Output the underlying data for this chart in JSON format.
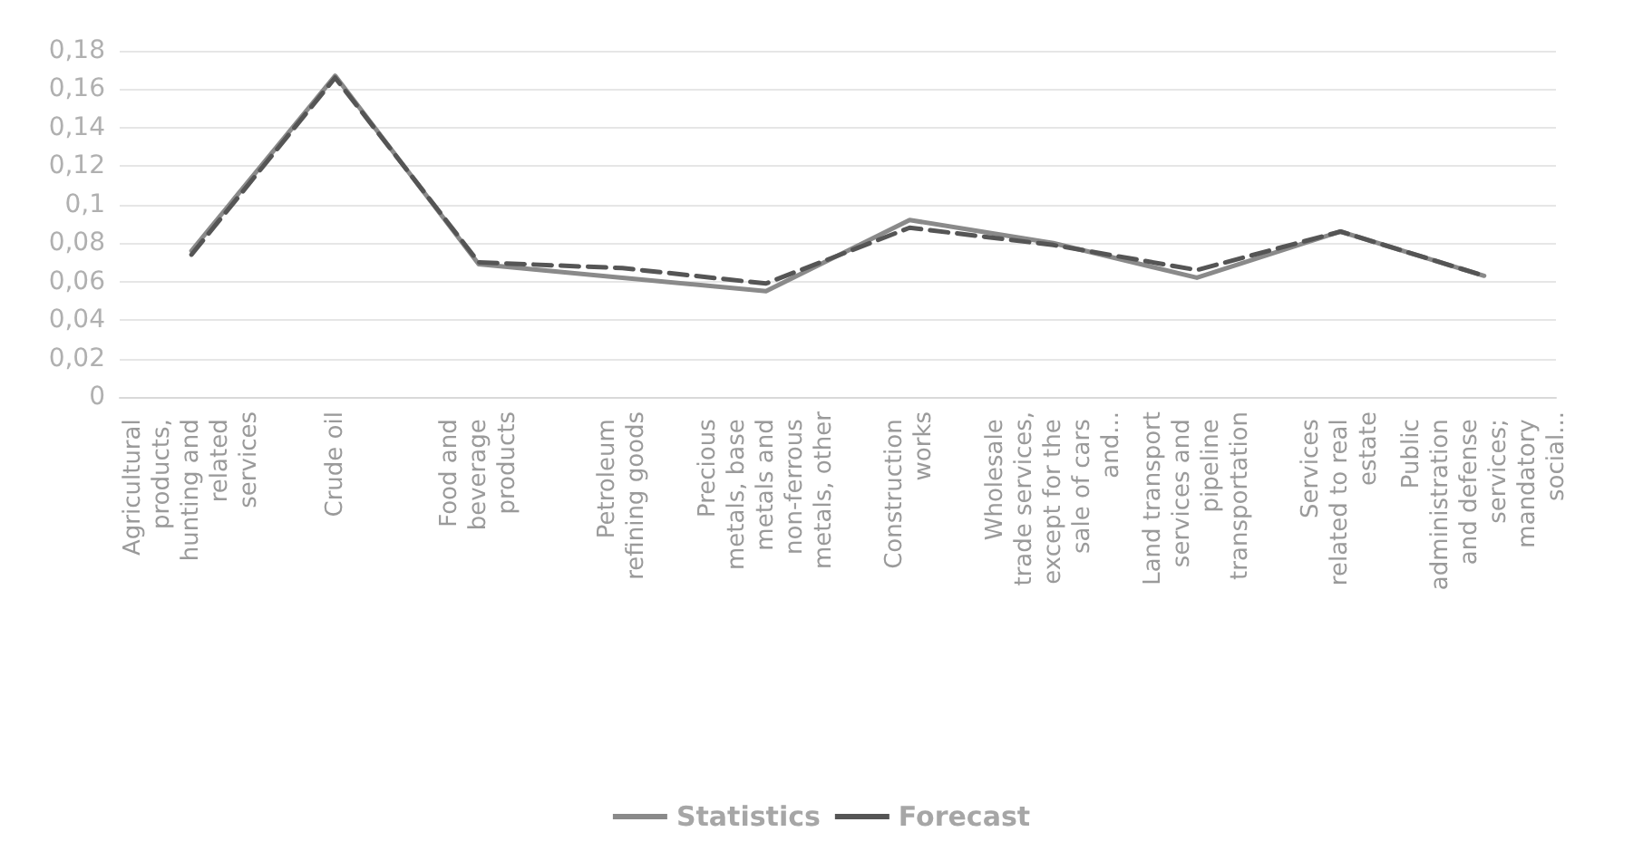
{
  "chart_data": {
    "type": "line",
    "categories": [
      "Agricultural products, hunting and related services",
      "Crude oil",
      "Food and beverage products",
      "Petroleum refining goods",
      "Precious metals, base metals and non-ferrous metals, other",
      "Construction works",
      "Wholesale trade services, except for the sale of cars and...",
      "Land transport services and pipeline transportation",
      "Services related to real estate",
      "Public administration and defense services; mandatory social..."
    ],
    "series": [
      {
        "name": "Statistics",
        "color": "#8a8a8a",
        "line_style": "solid",
        "values": [
          0.076,
          0.167,
          0.069,
          0.062,
          0.055,
          0.092,
          0.08,
          0.062,
          0.086,
          0.063
        ]
      },
      {
        "name": "Forecast",
        "color": "#555555",
        "line_style": "dashed",
        "values": [
          0.074,
          0.166,
          0.07,
          0.067,
          0.059,
          0.088,
          0.079,
          0.066,
          0.086,
          0.063
        ]
      }
    ],
    "ylim": [
      0,
      0.18
    ],
    "yticks": [
      {
        "value": 0,
        "label": "0"
      },
      {
        "value": 0.02,
        "label": "0,02"
      },
      {
        "value": 0.04,
        "label": "0,04"
      },
      {
        "value": 0.06,
        "label": "0,06"
      },
      {
        "value": 0.08,
        "label": "0,08"
      },
      {
        "value": 0.1,
        "label": "0,1"
      },
      {
        "value": 0.12,
        "label": "0,12"
      },
      {
        "value": 0.14,
        "label": "0,14"
      },
      {
        "value": 0.16,
        "label": "0,16"
      },
      {
        "value": 0.18,
        "label": "0,18"
      }
    ],
    "grid": "y",
    "legend": "bottom",
    "marker": "none"
  }
}
